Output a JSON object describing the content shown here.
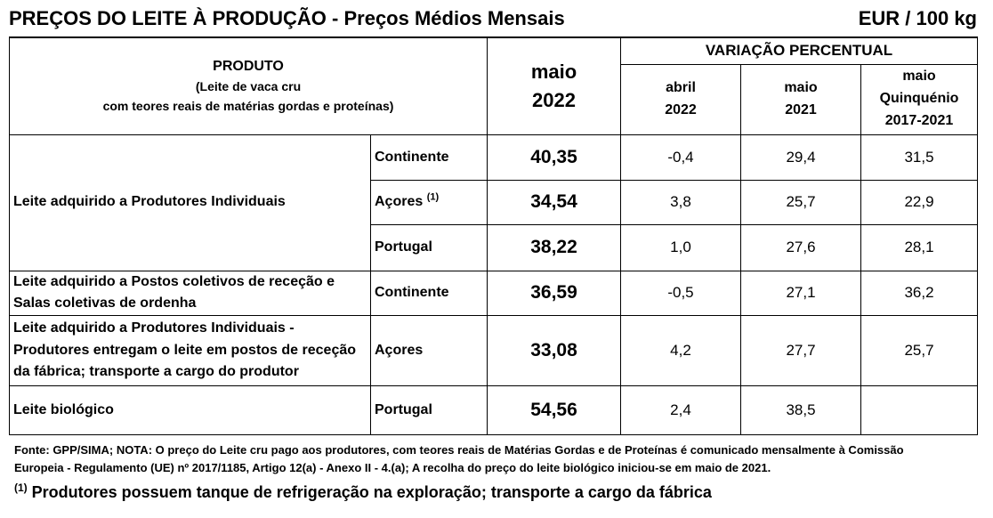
{
  "header": {
    "title": "PREÇOS DO LEITE À PRODUÇÃO - Preços Médios Mensais",
    "unit": "EUR / 100 kg"
  },
  "table": {
    "produto_header": "PRODUTO",
    "produto_sub_1": "(Leite de vaca cru",
    "produto_sub_2": "com teores reais de matérias gordas e proteínas)",
    "price_col_line1": "maio",
    "price_col_line2": "2022",
    "variation_header": "VARIAÇÃO PERCENTUAL",
    "var_cols": [
      {
        "line1": "abril",
        "line2": "2022",
        "line3": ""
      },
      {
        "line1": "maio",
        "line2": "2021",
        "line3": ""
      },
      {
        "line1": "maio",
        "line2": "Quinquénio",
        "line3": "2017-2021"
      }
    ],
    "rows": [
      {
        "product_1": "Leite adquirido a Produtores Individuais",
        "product_2": "",
        "product_3": "",
        "region": "Continente",
        "footnote_mark": "",
        "price": "40,35",
        "v1": "-0,4",
        "v2": "29,4",
        "v3": "31,5"
      },
      {
        "region": "Açores",
        "footnote_mark": "(1)",
        "price": "34,54",
        "v1": "3,8",
        "v2": "25,7",
        "v3": "22,9"
      },
      {
        "region": "Portugal",
        "footnote_mark": "",
        "price": "38,22",
        "v1": "1,0",
        "v2": "27,6",
        "v3": "28,1"
      },
      {
        "product_1": "Leite adquirido a Postos coletivos de receção e",
        "product_2": "Salas coletivas de ordenha",
        "product_3": "",
        "region": "Continente",
        "footnote_mark": "",
        "price": "36,59",
        "v1": "-0,5",
        "v2": "27,1",
        "v3": "36,2"
      },
      {
        "product_1": "Leite adquirido a Produtores Individuais -",
        "product_2": "Produtores entregam o leite em postos de receção",
        "product_3": "da fábrica; transporte a cargo do produtor",
        "region": "Açores",
        "footnote_mark": "",
        "price": "33,08",
        "v1": "4,2",
        "v2": "27,7",
        "v3": "25,7"
      },
      {
        "product_1": "Leite biológico",
        "product_2": "",
        "product_3": "",
        "region": "Portugal",
        "footnote_mark": "",
        "price": "54,56",
        "v1": "2,4",
        "v2": "38,5",
        "v3": ""
      }
    ]
  },
  "notes": {
    "source_line1": "Fonte: GPP/SIMA; NOTA: O preço do Leite cru pago aos produtores, com teores reais de Matérias Gordas e de Proteínas é comunicado mensalmente à  Comissão",
    "source_line2": "Europeia - Regulamento (UE) nº 2017/1185, Artigo 12(a) - Anexo II - 4.(a); A recolha do preço do leite biológico iniciou-se em maio de 2021.",
    "footnote_mark": "(1)",
    "footnote_text": " Produtores possuem tanque de refrigeração na exploração; transporte a cargo da fábrica"
  }
}
